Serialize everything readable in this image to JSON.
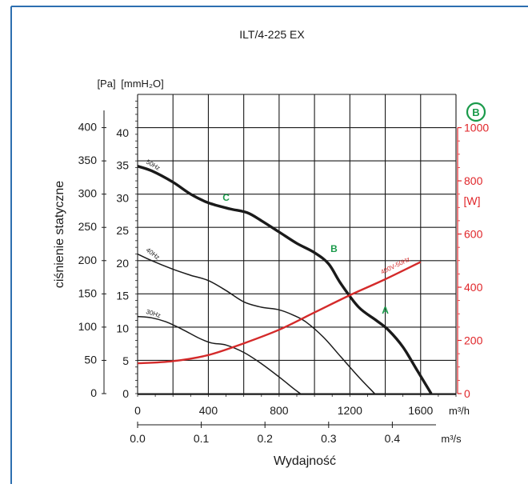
{
  "colors": {
    "frame": "#2d6fb0",
    "grid": "#1a1a1a",
    "fan_curve": "#1a1a1a",
    "power_curve": "#d42a2a",
    "point_label": "#1a9a4a",
    "badge": "#1a9a4a",
    "power_axis": "#e0262a"
  },
  "chart_data": {
    "type": "line",
    "title": "ILT/4-225 EX",
    "badge": "B",
    "ylabel": "ciśnienie statyczne",
    "xlabel": "Wydajność",
    "x_unit_primary": "m³/h",
    "x_unit_secondary": "m³/s",
    "y_unit_left_outer": "[Pa]",
    "y_unit_left_inner": "[mmH₂O]",
    "y_unit_right": "[W]",
    "xlim": [
      0,
      1800
    ],
    "ylim": [
      0,
      450
    ],
    "x_ticks": [
      0,
      400,
      800,
      1200,
      1600
    ],
    "x_ticks_secondary": [
      {
        "label": "0.0",
        "m3h": 0
      },
      {
        "label": "0.1",
        "m3h": 360
      },
      {
        "label": "0.2",
        "m3h": 720
      },
      {
        "label": "0.3",
        "m3h": 1080
      },
      {
        "label": "0.4",
        "m3h": 1440
      }
    ],
    "y_ticks_pa": [
      0,
      50,
      100,
      150,
      200,
      250,
      300,
      350,
      400
    ],
    "y_ticks_mmh2o": [
      0,
      5,
      10,
      15,
      20,
      25,
      30,
      35,
      40
    ],
    "y_ticks_w": [
      0,
      200,
      400,
      600,
      800,
      1000
    ],
    "power_axis_max": 1000,
    "series": [
      {
        "name": "50Hz",
        "role": "fan",
        "weight": "bold",
        "points": [
          [
            0,
            342
          ],
          [
            80,
            335
          ],
          [
            200,
            318
          ],
          [
            300,
            300
          ],
          [
            400,
            287
          ],
          [
            520,
            278
          ],
          [
            620,
            272
          ],
          [
            700,
            260
          ],
          [
            800,
            243
          ],
          [
            900,
            226
          ],
          [
            1000,
            212
          ],
          [
            1080,
            195
          ],
          [
            1150,
            165
          ],
          [
            1250,
            130
          ],
          [
            1350,
            110
          ],
          [
            1420,
            95
          ],
          [
            1500,
            70
          ],
          [
            1580,
            35
          ],
          [
            1660,
            0
          ]
        ]
      },
      {
        "name": "40Hz",
        "role": "fan",
        "weight": "normal",
        "points": [
          [
            0,
            210
          ],
          [
            80,
            200
          ],
          [
            200,
            187
          ],
          [
            300,
            178
          ],
          [
            400,
            170
          ],
          [
            500,
            155
          ],
          [
            600,
            138
          ],
          [
            700,
            130
          ],
          [
            800,
            126
          ],
          [
            880,
            118
          ],
          [
            950,
            108
          ],
          [
            1050,
            85
          ],
          [
            1150,
            55
          ],
          [
            1250,
            25
          ],
          [
            1340,
            0
          ]
        ]
      },
      {
        "name": "30Hz",
        "role": "fan",
        "weight": "normal",
        "points": [
          [
            0,
            116
          ],
          [
            80,
            114
          ],
          [
            160,
            108
          ],
          [
            250,
            97
          ],
          [
            350,
            83
          ],
          [
            420,
            76
          ],
          [
            500,
            73
          ],
          [
            600,
            62
          ],
          [
            700,
            45
          ],
          [
            800,
            25
          ],
          [
            880,
            8
          ],
          [
            920,
            0
          ]
        ]
      },
      {
        "name": "400V-50Hz",
        "role": "power",
        "axis": "W",
        "points": [
          [
            0,
            114
          ],
          [
            200,
            122
          ],
          [
            400,
            145
          ],
          [
            600,
            189
          ],
          [
            800,
            240
          ],
          [
            1000,
            305
          ],
          [
            1200,
            370
          ],
          [
            1400,
            430
          ],
          [
            1600,
            495
          ]
        ]
      }
    ],
    "point_labels": [
      {
        "label": "C",
        "x": 500,
        "y": 283
      },
      {
        "label": "B",
        "x": 1110,
        "y": 206
      },
      {
        "label": "A",
        "x": 1400,
        "y": 113
      }
    ],
    "grid": true
  }
}
